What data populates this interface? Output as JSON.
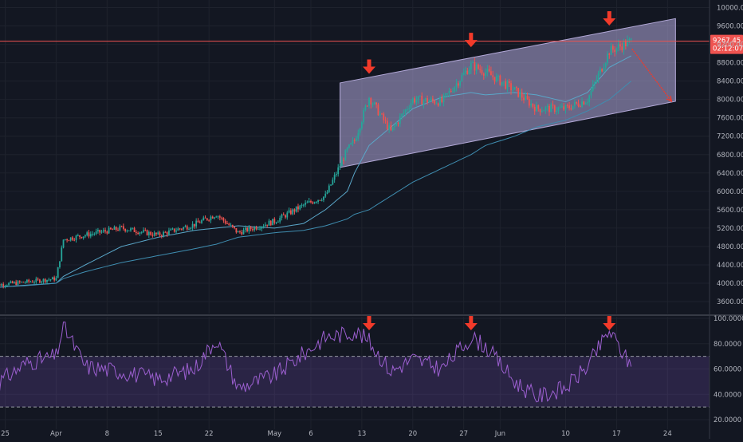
{
  "chart_data": [
    {
      "type": "candlestick",
      "title": "",
      "x_tick_labels": [
        "25",
        "Apr",
        "8",
        "15",
        "22",
        "May",
        "6",
        "13",
        "20",
        "27",
        "Jun",
        "10",
        "17",
        "24"
      ],
      "y_tick_labels": [
        "10000.00",
        "9600.00",
        "9200.00",
        "8800.00",
        "8400.00",
        "8000.00",
        "7600.00",
        "7200.00",
        "6800.00",
        "6400.00",
        "6000.00",
        "5600.00",
        "5200.00",
        "4800.00",
        "4400.00",
        "4000.00",
        "3600.00"
      ],
      "ylim": [
        3350,
        10050
      ],
      "grid": true,
      "current_price": {
        "value": 9267.45,
        "label": "9267.45",
        "countdown": "02:12:07"
      },
      "close_series": {
        "description": "approximate daily closes read from the price pane",
        "x": [
          "2019-03-23",
          "2019-03-28",
          "2019-04-01",
          "2019-04-02",
          "2019-04-05",
          "2019-04-10",
          "2019-04-15",
          "2019-04-20",
          "2019-04-23",
          "2019-04-26",
          "2019-05-01",
          "2019-05-05",
          "2019-05-08",
          "2019-05-11",
          "2019-05-12",
          "2019-05-14",
          "2019-05-17",
          "2019-05-20",
          "2019-05-24",
          "2019-05-28",
          "2019-05-30",
          "2019-06-03",
          "2019-06-06",
          "2019-06-10",
          "2019-06-13",
          "2019-06-16",
          "2019-06-19"
        ],
        "values": [
          3950,
          4030,
          4100,
          4950,
          5050,
          5200,
          5050,
          5280,
          5500,
          5100,
          5350,
          5700,
          5900,
          6900,
          7100,
          8050,
          7300,
          8000,
          7950,
          8750,
          8600,
          8200,
          7800,
          7800,
          8000,
          9050,
          9267
        ]
      },
      "moving_averages": [
        {
          "values": [
            3900,
            3960,
            4000,
            4150,
            4400,
            4800,
            5000,
            5150,
            5200,
            5250,
            5200,
            5300,
            5600,
            6000,
            6400,
            7000,
            7400,
            7800,
            8050,
            8150,
            8100,
            8150,
            8100,
            7950,
            8150,
            8700,
            8950
          ]
        },
        {
          "values": [
            3900,
            3950,
            4000,
            4100,
            4250,
            4450,
            4600,
            4750,
            4850,
            5000,
            5100,
            5150,
            5250,
            5400,
            5500,
            5600,
            5900,
            6200,
            6500,
            6800,
            7000,
            7200,
            7400,
            7550,
            7750,
            8000,
            8400
          ]
        }
      ],
      "annotations": [
        "rising channel",
        "red sell arrows at three channel-top touches",
        "red projected move down toward channel bottom"
      ]
    },
    {
      "type": "line",
      "title": "",
      "y_tick_labels": [
        "100.0000",
        "80.0000",
        "60.0000",
        "40.0000",
        "20.0000"
      ],
      "ylim": [
        15,
        102
      ],
      "bands": [
        30,
        70
      ],
      "series": [
        {
          "x": [
            "2019-03-23",
            "2019-03-28",
            "2019-04-01",
            "2019-04-02",
            "2019-04-05",
            "2019-04-10",
            "2019-04-15",
            "2019-04-20",
            "2019-04-23",
            "2019-04-26",
            "2019-05-01",
            "2019-05-05",
            "2019-05-08",
            "2019-05-11",
            "2019-05-12",
            "2019-05-14",
            "2019-05-17",
            "2019-05-20",
            "2019-05-24",
            "2019-05-28",
            "2019-05-30",
            "2019-06-03",
            "2019-06-06",
            "2019-06-10",
            "2019-06-13",
            "2019-06-16",
            "2019-06-19"
          ],
          "values": [
            45,
            65,
            70,
            94,
            62,
            58,
            52,
            60,
            84,
            45,
            55,
            72,
            85,
            88,
            90,
            82,
            58,
            68,
            60,
            85,
            78,
            50,
            38,
            45,
            62,
            90,
            62
          ]
        }
      ],
      "annotations": [
        "red arrows above three overbought RSI peaks"
      ]
    }
  ]
}
